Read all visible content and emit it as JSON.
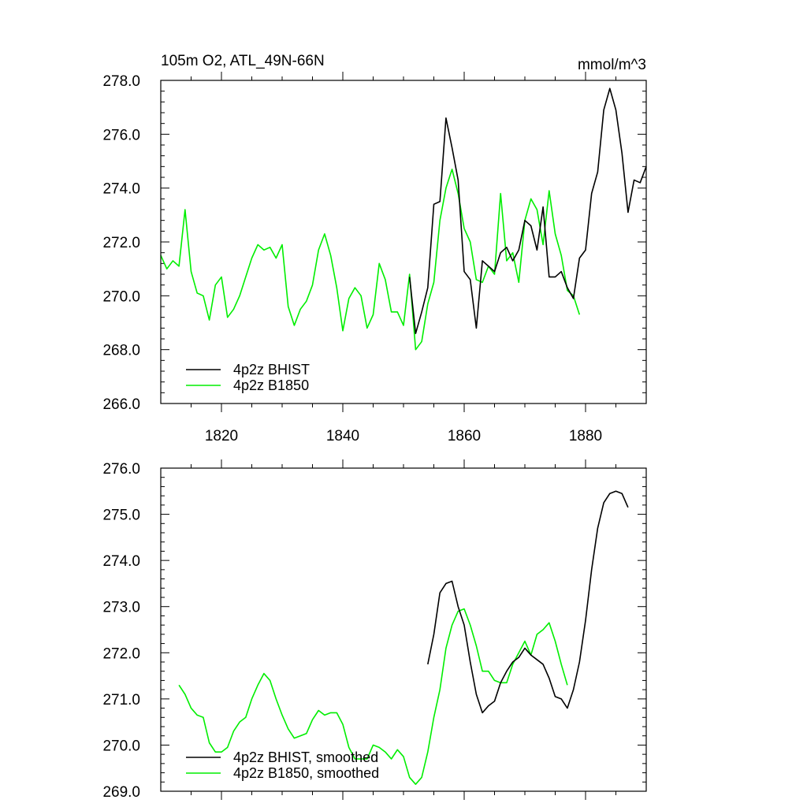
{
  "colors": {
    "bhist": "#000000",
    "b1850": "#00ee00"
  },
  "chart_data": [
    {
      "type": "line",
      "title": "105m O2, ATL_49N-66N",
      "units": "mmol/m^3",
      "xlim": [
        1810,
        1890
      ],
      "ylim": [
        266.0,
        278.0
      ],
      "x_ticks": [
        1820,
        1840,
        1860,
        1880
      ],
      "x_tick_labels": [
        "1820",
        "1840",
        "1860",
        "1880"
      ],
      "y_ticks": [
        266,
        268,
        270,
        272,
        274,
        276,
        278
      ],
      "y_tick_labels": [
        "266.0",
        "268.0",
        "270.0",
        "272.0",
        "274.0",
        "276.0",
        "278.0"
      ],
      "legend": [
        "4p2z BHIST",
        "4p2z B1850"
      ],
      "series": [
        {
          "name": "4p2z BHIST",
          "color_key": "bhist",
          "x_start": 1851,
          "values": [
            270.7,
            268.6,
            269.4,
            270.3,
            273.4,
            273.5,
            276.6,
            275.5,
            274.3,
            270.9,
            270.6,
            268.8,
            271.3,
            271.1,
            270.9,
            271.6,
            271.8,
            271.3,
            271.7,
            272.8,
            272.6,
            271.7,
            273.3,
            270.7,
            270.7,
            270.9,
            270.3,
            269.9,
            271.4,
            271.7,
            273.8,
            274.6,
            276.9,
            277.7,
            276.9,
            275.3,
            273.1,
            274.3,
            274.2,
            274.8
          ]
        },
        {
          "name": "4p2z B1850",
          "color_key": "b1850",
          "x_start": 1810,
          "values": [
            271.5,
            271.0,
            271.3,
            271.1,
            273.2,
            270.9,
            270.1,
            270.0,
            269.1,
            270.4,
            270.7,
            269.2,
            269.5,
            270.0,
            270.7,
            271.4,
            271.9,
            271.7,
            271.8,
            271.4,
            271.9,
            269.6,
            268.9,
            269.5,
            269.8,
            270.4,
            271.7,
            272.3,
            271.5,
            270.3,
            268.7,
            269.9,
            270.3,
            270.0,
            268.8,
            269.3,
            271.2,
            270.6,
            269.4,
            269.4,
            268.9,
            270.8,
            268.0,
            268.3,
            269.7,
            270.5,
            272.8,
            274.0,
            274.7,
            273.8,
            272.5,
            272.0,
            270.6,
            270.5,
            271.1,
            270.8,
            273.8,
            271.3,
            271.6,
            270.5,
            272.8,
            273.6,
            273.2,
            271.9,
            273.9,
            272.3,
            271.5,
            270.2,
            270.0,
            269.3
          ]
        }
      ]
    },
    {
      "type": "line",
      "title": "",
      "xlim": [
        1810,
        1890
      ],
      "ylim": [
        269.0,
        276.0
      ],
      "x_ticks": [
        1820,
        1840,
        1860,
        1880
      ],
      "y_ticks": [
        269,
        270,
        271,
        272,
        273,
        274,
        275,
        276
      ],
      "y_tick_labels": [
        "269.0",
        "270.0",
        "271.0",
        "272.0",
        "273.0",
        "274.0",
        "275.0",
        "276.0"
      ],
      "legend": [
        "4p2z BHIST, smoothed",
        "4p2z B1850, smoothed"
      ],
      "series": [
        {
          "name": "4p2z BHIST, smoothed",
          "color_key": "bhist",
          "x_start": 1854,
          "values": [
            271.75,
            272.4,
            273.3,
            273.5,
            273.55,
            273.0,
            272.6,
            271.8,
            271.1,
            270.7,
            270.85,
            270.95,
            271.35,
            271.6,
            271.8,
            271.9,
            272.1,
            271.95,
            271.85,
            271.75,
            271.45,
            271.05,
            271.0,
            270.8,
            271.2,
            271.8,
            272.7,
            273.8,
            274.7,
            275.25,
            275.45,
            275.5,
            275.45,
            275.15
          ]
        },
        {
          "name": "4p2z B1850, smoothed",
          "color_key": "b1850",
          "x_start": 1813,
          "values": [
            271.3,
            271.1,
            270.8,
            270.65,
            270.6,
            270.05,
            269.85,
            269.85,
            269.95,
            270.3,
            270.5,
            270.6,
            271.0,
            271.3,
            271.55,
            271.4,
            271.0,
            270.65,
            270.35,
            270.15,
            270.2,
            270.25,
            270.55,
            270.75,
            270.65,
            270.7,
            270.7,
            270.45,
            269.95,
            269.7,
            269.7,
            269.7,
            270.0,
            269.95,
            269.85,
            269.7,
            269.9,
            269.75,
            269.3,
            269.15,
            269.3,
            269.85,
            270.6,
            271.2,
            272.1,
            272.6,
            272.9,
            272.95,
            272.6,
            272.15,
            271.6,
            271.6,
            271.4,
            271.35,
            271.35,
            271.75,
            272.0,
            272.25,
            271.95,
            272.4,
            272.5,
            272.65,
            272.25,
            271.75,
            271.3
          ]
        }
      ]
    }
  ]
}
